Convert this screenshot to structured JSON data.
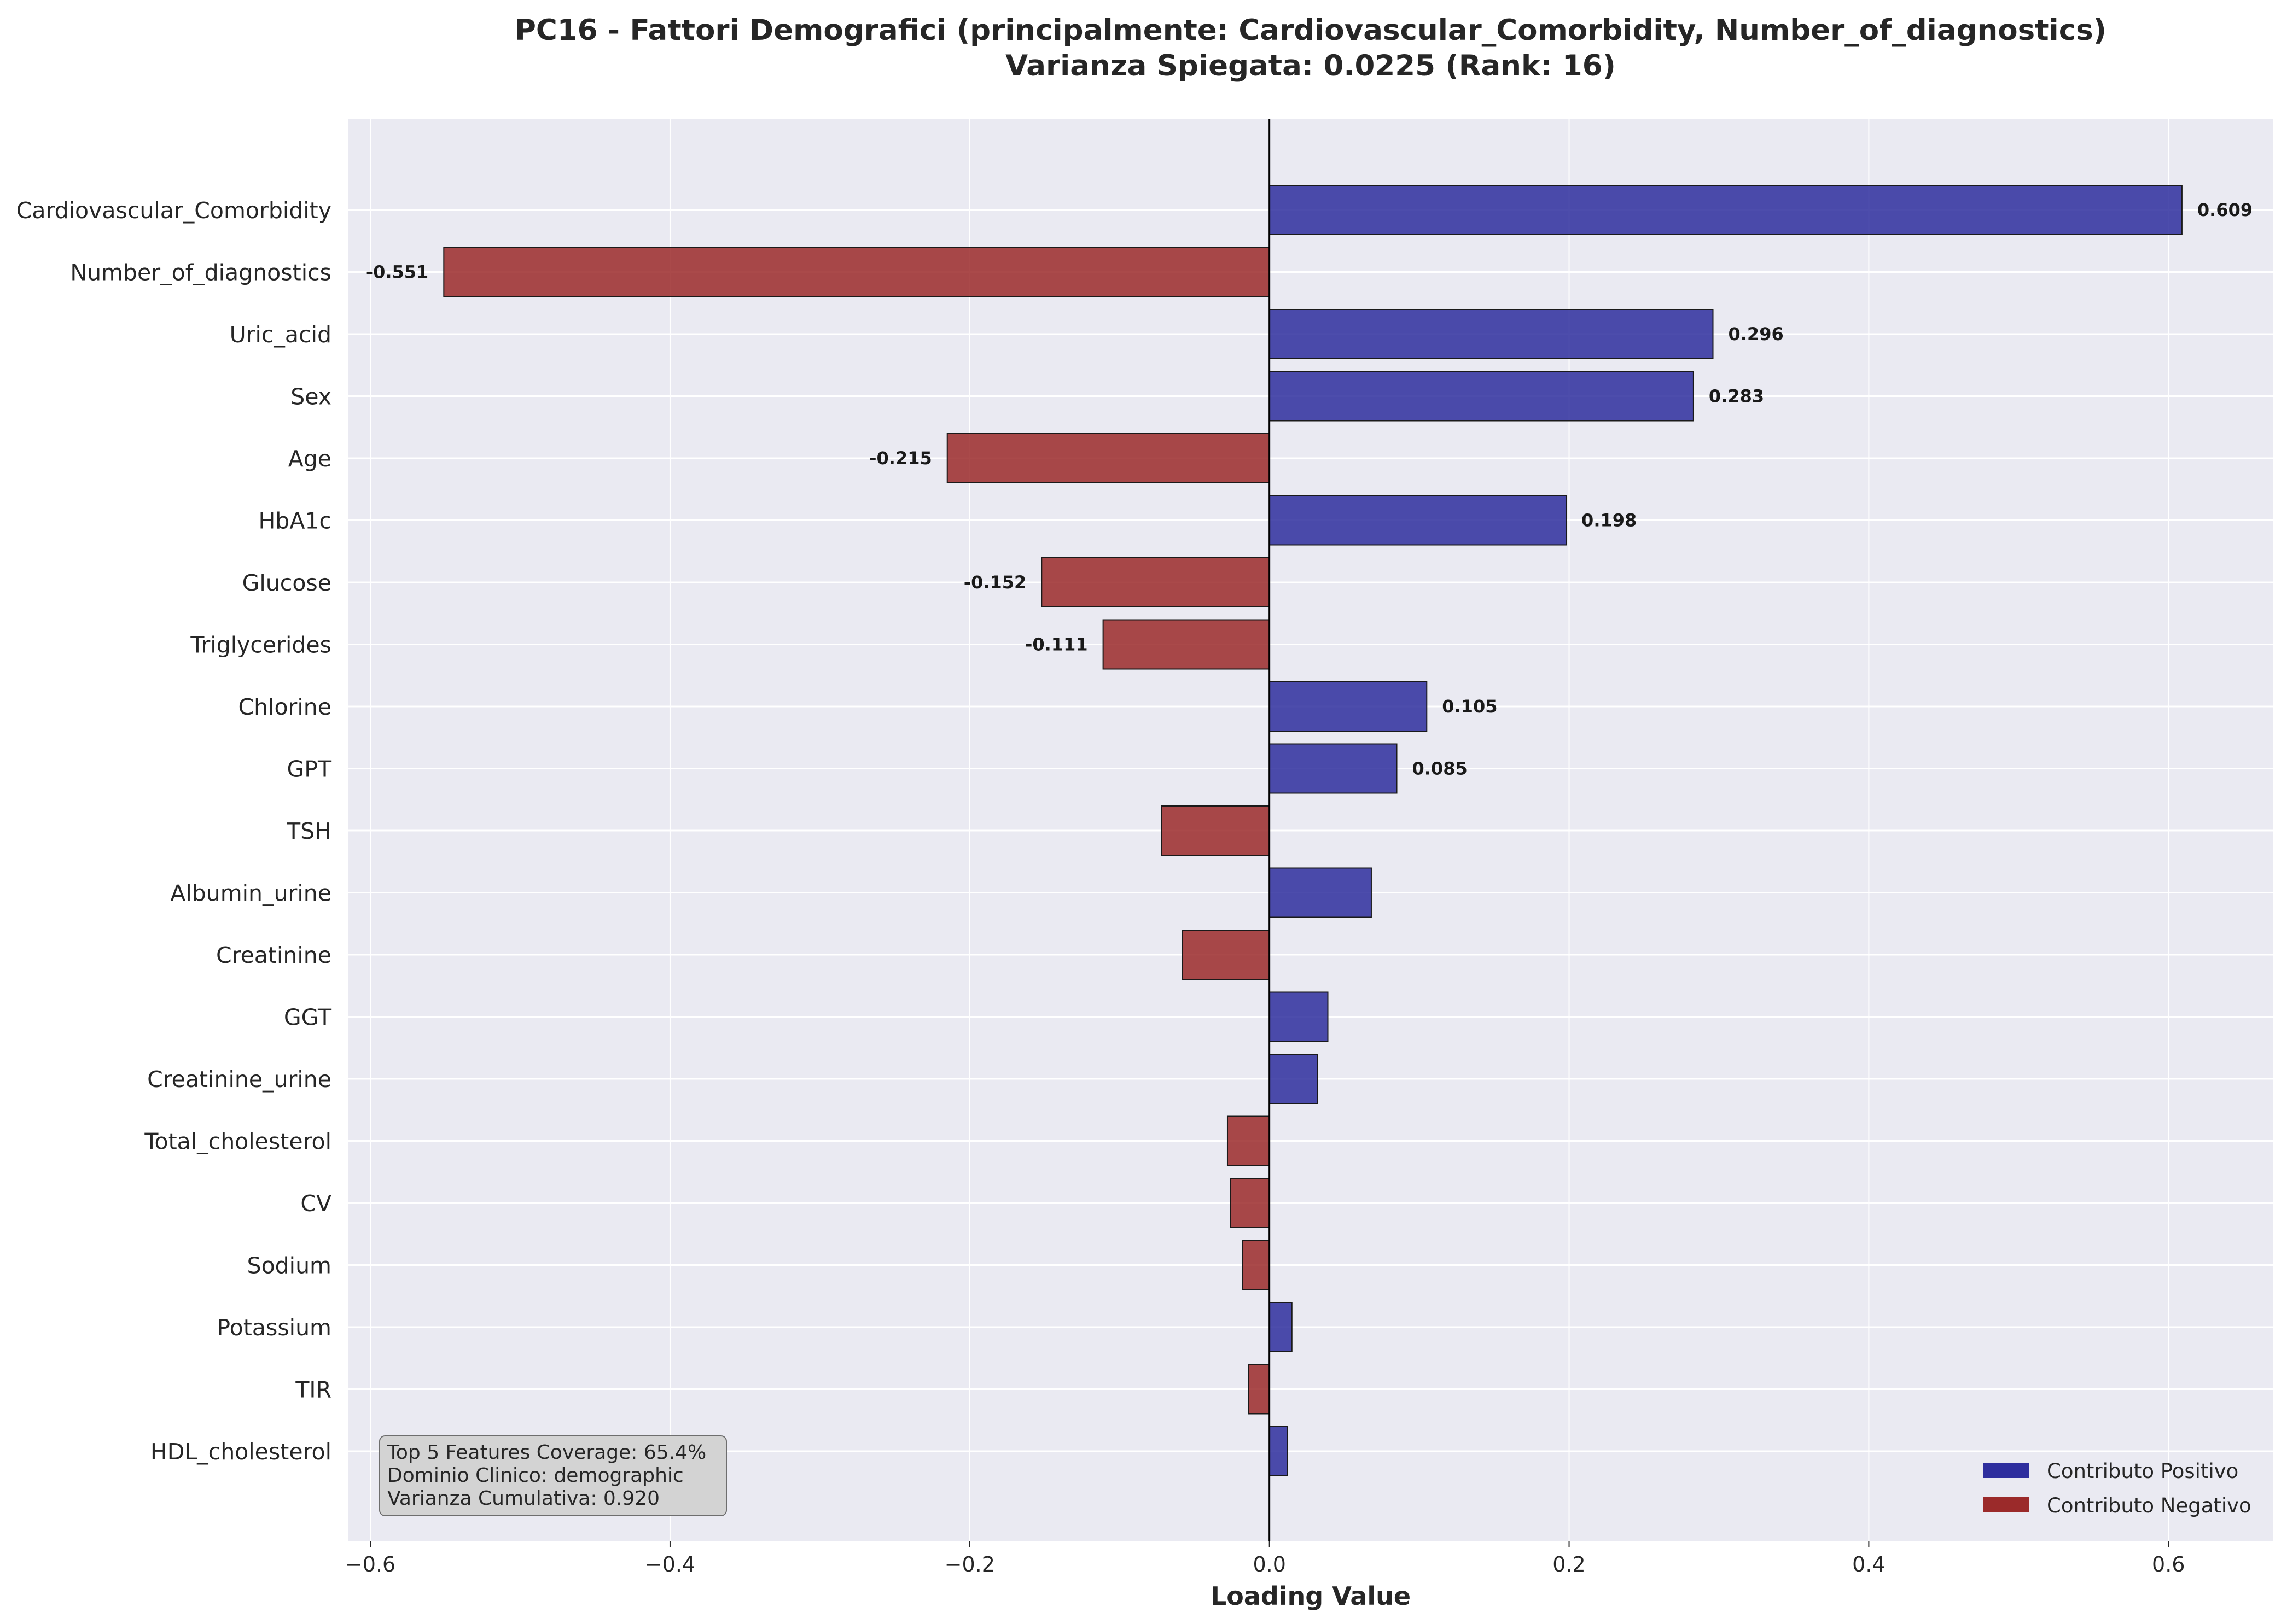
{
  "chart_data": {
    "type": "bar",
    "orientation": "horizontal",
    "title_line1": "PC16 - Fattori Demografici (principalmente: Cardiovascular_Comorbidity, Number_of_diagnostics)",
    "title_line2": "Varianza Spiegata: 0.0225 (Rank: 16)",
    "xlabel": "Loading Value",
    "ylabel": "",
    "xlim": [
      -0.615,
      0.67
    ],
    "xticks": [
      -0.6,
      -0.4,
      -0.2,
      0.0,
      0.2,
      0.4,
      0.6
    ],
    "xtick_labels": [
      "−0.6",
      "−0.4",
      "−0.2",
      "0.0",
      "0.2",
      "0.4",
      "0.6"
    ],
    "grid": true,
    "categories": [
      "Cardiovascular_Comorbidity",
      "Number_of_diagnostics",
      "Uric_acid",
      "Sex",
      "Age",
      "HbA1c",
      "Glucose",
      "Triglycerides",
      "Chlorine",
      "GPT",
      "TSH",
      "Albumin_urine",
      "Creatinine",
      "GGT",
      "Creatinine_urine",
      "Total_cholesterol",
      "CV",
      "Sodium",
      "Potassium",
      "TIR",
      "HDL_cholesterol"
    ],
    "values": [
      0.609,
      -0.551,
      0.296,
      0.283,
      -0.215,
      0.198,
      -0.152,
      -0.111,
      0.105,
      0.085,
      -0.072,
      0.068,
      -0.058,
      0.039,
      0.032,
      -0.028,
      -0.026,
      -0.018,
      0.015,
      -0.014,
      0.012
    ],
    "data_labels": [
      "0.609",
      "-0.551",
      "0.296",
      "0.283",
      "-0.215",
      "0.198",
      "-0.152",
      "-0.111",
      "0.105",
      "0.085",
      "",
      "",
      "",
      "",
      "",
      "",
      "",
      "",
      "",
      "",
      ""
    ],
    "legend": {
      "placement": "lower-right",
      "entries": [
        {
          "label": "Contributo Positivo",
          "color": "#2e2e9e"
        },
        {
          "label": "Contributo Negativo",
          "color": "#9b2a2a"
        }
      ]
    },
    "annotation": {
      "placement": "lower-left",
      "lines": [
        "Top 5 Features Coverage: 65.4%",
        "Dominio Clinico: demographic",
        "Varianza Cumulativa: 0.920"
      ]
    },
    "colors": {
      "positive": "#2e2e9e",
      "negative": "#9b2a2a",
      "plot_background": "#eaeaf2",
      "grid": "#ffffff"
    }
  }
}
